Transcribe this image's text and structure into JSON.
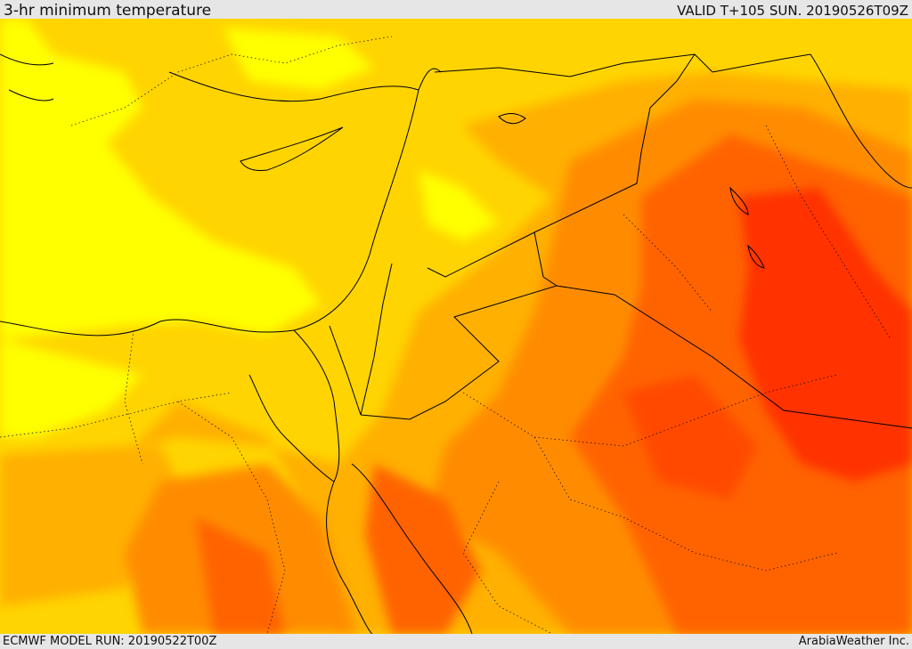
{
  "header": {
    "title": "3-hr minimum temperature",
    "valid": "VALID T+105 SUN. 20190526T09Z"
  },
  "map": {
    "field": "3-hr minimum temperature",
    "palette": [
      "#ffff00",
      "#ffdc00",
      "#ffb400",
      "#ff8c00",
      "#ff6400",
      "#ff2800"
    ],
    "coast_color": "#000000",
    "border_color": "#000000"
  },
  "footer": {
    "model_run": "ECMWF MODEL RUN: 20190522T00Z",
    "credit": "ArabiaWeather Inc."
  }
}
